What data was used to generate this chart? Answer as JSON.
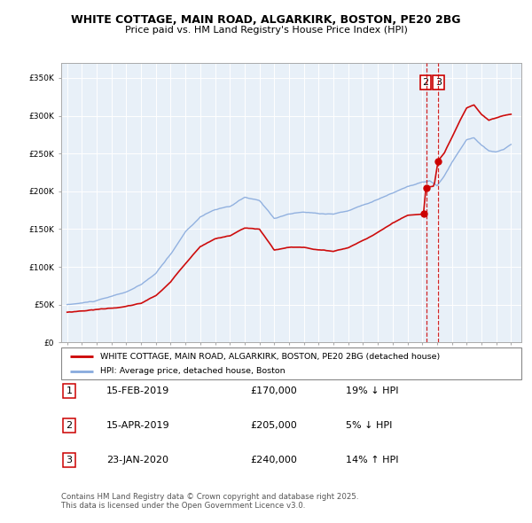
{
  "title1": "WHITE COTTAGE, MAIN ROAD, ALGARKIRK, BOSTON, PE20 2BG",
  "title2": "Price paid vs. HM Land Registry's House Price Index (HPI)",
  "legend_house": "WHITE COTTAGE, MAIN ROAD, ALGARKIRK, BOSTON, PE20 2BG (detached house)",
  "legend_hpi": "HPI: Average price, detached house, Boston",
  "transactions": [
    {
      "num": 1,
      "date": "15-FEB-2019",
      "price": "£170,000",
      "pct": "19%",
      "dir": "↓"
    },
    {
      "num": 2,
      "date": "15-APR-2019",
      "price": "£205,000",
      "pct": "5%",
      "dir": "↓"
    },
    {
      "num": 3,
      "date": "23-JAN-2020",
      "price": "£240,000",
      "pct": "14%",
      "dir": "↑"
    }
  ],
  "footnote1": "Contains HM Land Registry data © Crown copyright and database right 2025.",
  "footnote2": "This data is licensed under the Open Government Licence v3.0.",
  "house_color": "#cc0000",
  "hpi_color": "#88aadd",
  "vline_color": "#cc0000",
  "background_color": "#ffffff",
  "ylim_min": 0,
  "ylim_max": 370000,
  "start_year": 1995,
  "end_year": 2025,
  "hpi_anchors_t": [
    1995.0,
    1996.0,
    1997.0,
    1998.0,
    1999.0,
    2000.0,
    2001.0,
    2002.0,
    2003.0,
    2004.0,
    2005.0,
    2006.0,
    2007.0,
    2008.0,
    2009.0,
    2010.0,
    2011.0,
    2012.0,
    2013.0,
    2014.0,
    2015.0,
    2016.0,
    2017.0,
    2018.0,
    2019.0,
    2019.5,
    2020.0,
    2020.5,
    2021.0,
    2021.5,
    2022.0,
    2022.5,
    2023.0,
    2023.5,
    2024.0,
    2024.5,
    2025.0
  ],
  "hpi_anchors_v": [
    50000,
    52000,
    55000,
    60000,
    66000,
    75000,
    90000,
    115000,
    145000,
    165000,
    175000,
    178000,
    190000,
    185000,
    162000,
    168000,
    170000,
    168000,
    168000,
    172000,
    180000,
    188000,
    196000,
    205000,
    210000,
    212000,
    205000,
    218000,
    235000,
    250000,
    265000,
    268000,
    258000,
    250000,
    248000,
    252000,
    258000
  ],
  "house_anchors_t": [
    1995.0,
    1996.0,
    1997.0,
    1998.0,
    1999.0,
    2000.0,
    2001.0,
    2002.0,
    2003.0,
    2004.0,
    2005.0,
    2006.0,
    2007.0,
    2008.0,
    2009.0,
    2010.0,
    2011.0,
    2012.0,
    2013.0,
    2014.0,
    2015.0,
    2016.0,
    2017.0,
    2018.0,
    2019.083,
    2019.25,
    2019.8,
    2020.07,
    2020.5,
    2021.0,
    2021.5,
    2022.0,
    2022.5,
    2023.0,
    2023.5,
    2024.0,
    2024.5,
    2025.0
  ],
  "house_anchors_v": [
    40000,
    42000,
    44000,
    46000,
    48000,
    52000,
    62000,
    80000,
    105000,
    128000,
    138000,
    142000,
    152000,
    150000,
    122000,
    125000,
    125000,
    122000,
    120000,
    125000,
    135000,
    145000,
    158000,
    168000,
    170000,
    205000,
    207000,
    240000,
    250000,
    270000,
    290000,
    308000,
    312000,
    300000,
    292000,
    295000,
    298000,
    300000
  ],
  "t1": 2019.117,
  "t2": 2019.283,
  "t3": 2020.063,
  "p1": 170000,
  "p2": 205000,
  "p3": 240000,
  "hpi_noise_seed": 10,
  "house_noise_seed": 20,
  "hpi_noise_scale": 1200,
  "house_noise_scale": 900
}
